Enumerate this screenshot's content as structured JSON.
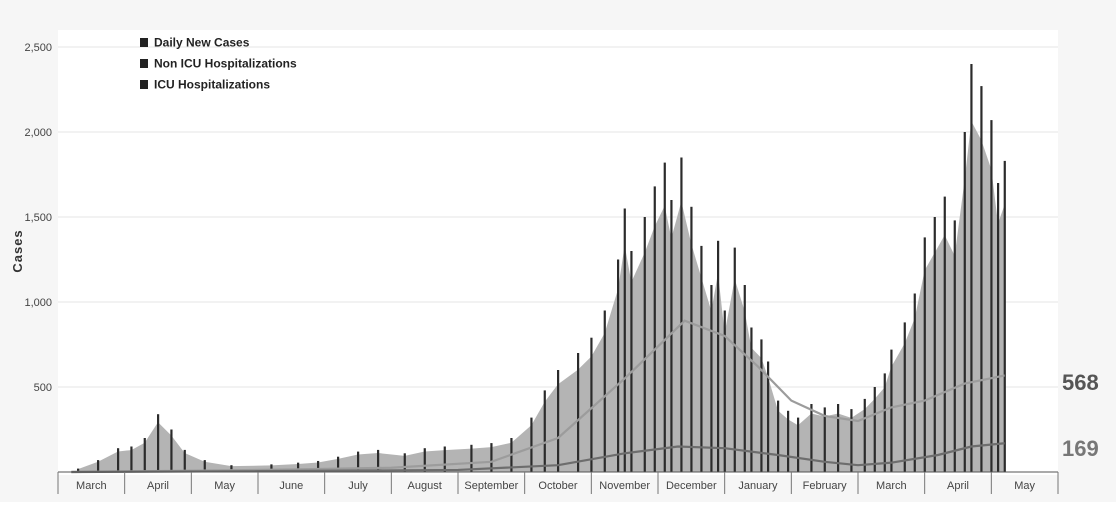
{
  "chart_data": {
    "type": "bar",
    "xlabel": "",
    "ylabel": "Cases",
    "ylim": [
      0,
      2600
    ],
    "yticks": [
      500,
      1000,
      1500,
      2000,
      2500
    ],
    "ytick_labels": [
      "500",
      "1,000",
      "1,500",
      "2,000",
      "2,500"
    ],
    "grid": true,
    "legend_placement": "top-left",
    "x_months": [
      "March",
      "April",
      "May",
      "June",
      "July",
      "August",
      "September",
      "October",
      "November",
      "December",
      "January",
      "February",
      "March",
      "April",
      "May"
    ],
    "series": [
      {
        "name": "Daily New Cases",
        "type": "bar",
        "color": "#2b2b2b",
        "x_unit": "month",
        "points": [
          [
            0.3,
            20
          ],
          [
            0.6,
            70
          ],
          [
            0.9,
            140
          ],
          [
            1.1,
            150
          ],
          [
            1.3,
            200
          ],
          [
            1.5,
            340
          ],
          [
            1.7,
            250
          ],
          [
            1.9,
            130
          ],
          [
            2.2,
            70
          ],
          [
            2.6,
            40
          ],
          [
            3.2,
            45
          ],
          [
            3.6,
            55
          ],
          [
            3.9,
            65
          ],
          [
            4.2,
            90
          ],
          [
            4.5,
            120
          ],
          [
            4.8,
            130
          ],
          [
            5.2,
            110
          ],
          [
            5.5,
            140
          ],
          [
            5.8,
            150
          ],
          [
            6.2,
            160
          ],
          [
            6.5,
            170
          ],
          [
            6.8,
            200
          ],
          [
            7.1,
            320
          ],
          [
            7.3,
            480
          ],
          [
            7.5,
            600
          ],
          [
            7.8,
            700
          ],
          [
            8.0,
            790
          ],
          [
            8.2,
            950
          ],
          [
            8.4,
            1250
          ],
          [
            8.5,
            1550
          ],
          [
            8.6,
            1300
          ],
          [
            8.8,
            1500
          ],
          [
            8.95,
            1680
          ],
          [
            9.1,
            1820
          ],
          [
            9.2,
            1600
          ],
          [
            9.35,
            1850
          ],
          [
            9.5,
            1560
          ],
          [
            9.65,
            1330
          ],
          [
            9.8,
            1100
          ],
          [
            9.9,
            1360
          ],
          [
            10.0,
            950
          ],
          [
            10.15,
            1320
          ],
          [
            10.3,
            1100
          ],
          [
            10.4,
            850
          ],
          [
            10.55,
            780
          ],
          [
            10.65,
            650
          ],
          [
            10.8,
            420
          ],
          [
            10.95,
            360
          ],
          [
            11.1,
            320
          ],
          [
            11.3,
            400
          ],
          [
            11.5,
            380
          ],
          [
            11.7,
            400
          ],
          [
            11.9,
            370
          ],
          [
            12.1,
            430
          ],
          [
            12.25,
            500
          ],
          [
            12.4,
            580
          ],
          [
            12.5,
            720
          ],
          [
            12.7,
            880
          ],
          [
            12.85,
            1050
          ],
          [
            13.0,
            1380
          ],
          [
            13.15,
            1500
          ],
          [
            13.3,
            1620
          ],
          [
            13.45,
            1480
          ],
          [
            13.6,
            2000
          ],
          [
            13.7,
            2400
          ],
          [
            13.85,
            2270
          ],
          [
            14.0,
            2070
          ],
          [
            14.1,
            1700
          ],
          [
            14.2,
            1830
          ]
        ]
      },
      {
        "name": "Non ICU Hospitalizations",
        "type": "line",
        "color": "#9c9c9c",
        "x_unit": "month",
        "end_label": "568",
        "points": [
          [
            0.2,
            0
          ],
          [
            2.5,
            10
          ],
          [
            3.5,
            15
          ],
          [
            5.0,
            25
          ],
          [
            6.5,
            60
          ],
          [
            7.5,
            200
          ],
          [
            8.5,
            550
          ],
          [
            9.4,
            890
          ],
          [
            10.0,
            800
          ],
          [
            10.5,
            620
          ],
          [
            11.0,
            420
          ],
          [
            11.5,
            330
          ],
          [
            12.0,
            300
          ],
          [
            12.5,
            380
          ],
          [
            13.0,
            420
          ],
          [
            13.6,
            520
          ],
          [
            14.2,
            568
          ]
        ]
      },
      {
        "name": "ICU Hospitalizations",
        "type": "line",
        "color": "#6d6d6d",
        "x_unit": "month",
        "end_label": "169",
        "points": [
          [
            0.2,
            0
          ],
          [
            3.0,
            5
          ],
          [
            6.0,
            12
          ],
          [
            7.5,
            40
          ],
          [
            8.5,
            110
          ],
          [
            9.3,
            150
          ],
          [
            10.0,
            140
          ],
          [
            10.8,
            100
          ],
          [
            11.5,
            60
          ],
          [
            12.0,
            40
          ],
          [
            12.5,
            55
          ],
          [
            13.2,
            100
          ],
          [
            13.7,
            150
          ],
          [
            14.2,
            169
          ]
        ]
      }
    ]
  }
}
